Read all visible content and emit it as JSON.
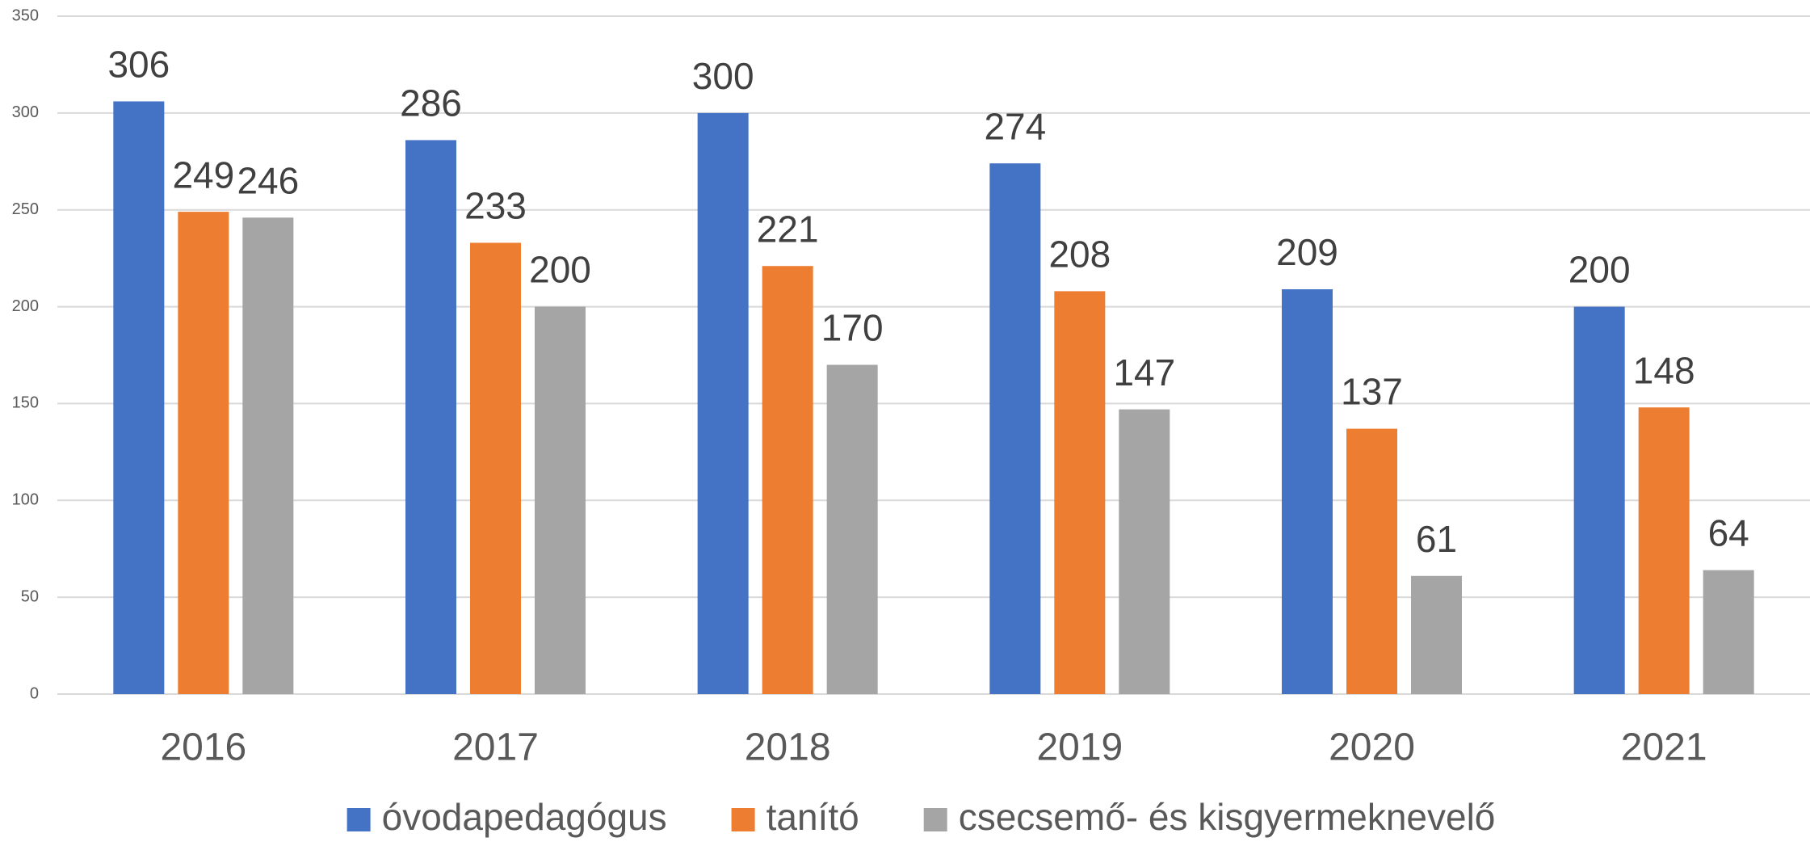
{
  "chart_data": {
    "type": "bar",
    "categories": [
      "2016",
      "2017",
      "2018",
      "2019",
      "2020",
      "2021"
    ],
    "series": [
      {
        "name": "óvodapedagógus",
        "color": "#4472c4",
        "values": [
          306,
          286,
          300,
          274,
          209,
          200
        ]
      },
      {
        "name": "tanító",
        "color": "#ed7d31",
        "values": [
          249,
          233,
          221,
          208,
          137,
          148
        ]
      },
      {
        "name": "csecsemő- és kisgyermeknevelő",
        "color": "#a5a5a5",
        "values": [
          246,
          200,
          170,
          147,
          61,
          64
        ]
      }
    ],
    "ylim": [
      0,
      350
    ],
    "yticks": [
      0,
      50,
      100,
      150,
      200,
      250,
      300,
      350
    ],
    "grid": true,
    "legend": "bottom"
  }
}
